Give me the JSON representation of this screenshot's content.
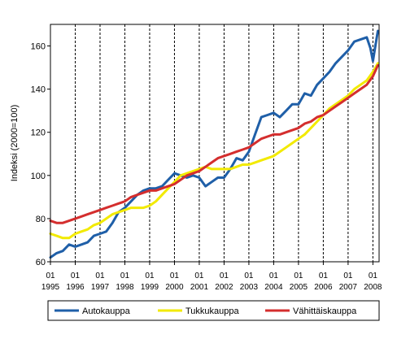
{
  "chart_data": {
    "type": "line",
    "title": "",
    "xlabel": "",
    "ylabel": "Indeksi (2000=100)",
    "ylim": [
      60,
      170
    ],
    "y_ticks": [
      60,
      80,
      100,
      120,
      140,
      160
    ],
    "x_tick_months": [
      "01",
      "01",
      "01",
      "01",
      "01",
      "01",
      "01",
      "01",
      "01",
      "01",
      "01",
      "01",
      "01",
      "01"
    ],
    "x_tick_years": [
      "1995",
      "1996",
      "1997",
      "1998",
      "1999",
      "2000",
      "2001",
      "2002",
      "2003",
      "2004",
      "2005",
      "2006",
      "2007",
      "2008"
    ],
    "x_range": [
      1995.0,
      2008.25
    ],
    "grid": "vertical dashed lines at each January",
    "legend_position": "bottom",
    "series": [
      {
        "name": "Autokauppa",
        "color": "#1f5fa8",
        "x": [
          1995.0,
          1995.25,
          1995.5,
          1995.75,
          1996.0,
          1996.25,
          1996.5,
          1996.75,
          1997.0,
          1997.25,
          1997.5,
          1997.75,
          1998.0,
          1998.25,
          1998.5,
          1998.75,
          1999.0,
          1999.25,
          1999.5,
          1999.75,
          2000.0,
          2000.25,
          2000.5,
          2000.75,
          2001.0,
          2001.25,
          2001.5,
          2001.75,
          2002.0,
          2002.25,
          2002.5,
          2002.75,
          2003.0,
          2003.25,
          2003.5,
          2003.75,
          2004.0,
          2004.25,
          2004.5,
          2004.75,
          2005.0,
          2005.25,
          2005.5,
          2005.75,
          2006.0,
          2006.25,
          2006.5,
          2006.75,
          2007.0,
          2007.25,
          2007.5,
          2007.75,
          2007.9,
          2008.0,
          2008.1,
          2008.2
        ],
        "values": [
          62,
          64,
          65,
          68,
          67,
          68,
          69,
          72,
          73,
          74,
          78,
          83,
          85,
          88,
          91,
          93,
          94,
          94,
          95,
          98,
          101,
          100,
          99,
          100,
          99,
          95,
          97,
          99,
          99,
          103,
          108,
          107,
          111,
          119,
          127,
          128,
          129,
          127,
          130,
          133,
          133,
          138,
          137,
          142,
          145,
          148,
          152,
          155,
          158,
          162,
          163,
          164,
          159,
          153,
          160,
          167
        ]
      },
      {
        "name": "Tukkukauppa",
        "color": "#f2ea00",
        "x": [
          1995.0,
          1995.25,
          1995.5,
          1995.75,
          1996.0,
          1996.25,
          1996.5,
          1996.75,
          1997.0,
          1997.25,
          1997.5,
          1997.75,
          1998.0,
          1998.25,
          1998.5,
          1998.75,
          1999.0,
          1999.25,
          1999.5,
          1999.75,
          2000.0,
          2000.25,
          2000.5,
          2000.75,
          2001.0,
          2001.25,
          2001.5,
          2001.75,
          2002.0,
          2002.25,
          2002.5,
          2002.75,
          2003.0,
          2003.25,
          2003.5,
          2003.75,
          2004.0,
          2004.25,
          2004.5,
          2004.75,
          2005.0,
          2005.25,
          2005.5,
          2005.75,
          2006.0,
          2006.25,
          2006.5,
          2006.75,
          2007.0,
          2007.25,
          2007.5,
          2007.75,
          2008.0,
          2008.2
        ],
        "values": [
          73,
          72,
          71,
          71,
          73,
          74,
          75,
          77,
          78,
          80,
          82,
          83,
          84,
          85,
          85,
          85,
          86,
          88,
          91,
          94,
          97,
          100,
          101,
          102,
          103,
          104,
          103,
          103,
          103,
          103,
          104,
          105,
          105,
          106,
          107,
          108,
          109,
          111,
          113,
          115,
          117,
          119,
          122,
          125,
          128,
          131,
          133,
          135,
          137,
          140,
          142,
          144,
          148,
          152
        ]
      },
      {
        "name": "Vähittäiskauppa",
        "color": "#d42e2e",
        "x": [
          1995.0,
          1995.25,
          1995.5,
          1995.75,
          1996.0,
          1996.25,
          1996.5,
          1996.75,
          1997.0,
          1997.25,
          1997.5,
          1997.75,
          1998.0,
          1998.25,
          1998.5,
          1998.75,
          1999.0,
          1999.25,
          1999.5,
          1999.75,
          2000.0,
          2000.25,
          2000.5,
          2000.75,
          2001.0,
          2001.25,
          2001.5,
          2001.75,
          2002.0,
          2002.25,
          2002.5,
          2002.75,
          2003.0,
          2003.25,
          2003.5,
          2003.75,
          2004.0,
          2004.25,
          2004.5,
          2004.75,
          2005.0,
          2005.25,
          2005.5,
          2005.75,
          2006.0,
          2006.25,
          2006.5,
          2006.75,
          2007.0,
          2007.25,
          2007.5,
          2007.75,
          2008.0,
          2008.2
        ],
        "values": [
          79,
          78,
          78,
          79,
          80,
          81,
          82,
          83,
          84,
          85,
          86,
          87,
          88,
          90,
          91,
          92,
          93,
          93,
          94,
          95,
          96,
          98,
          100,
          101,
          102,
          104,
          106,
          108,
          109,
          110,
          111,
          112,
          113,
          115,
          117,
          118,
          119,
          119,
          120,
          121,
          122,
          124,
          125,
          127,
          128,
          130,
          132,
          134,
          136,
          138,
          140,
          142,
          146,
          151
        ]
      }
    ]
  }
}
